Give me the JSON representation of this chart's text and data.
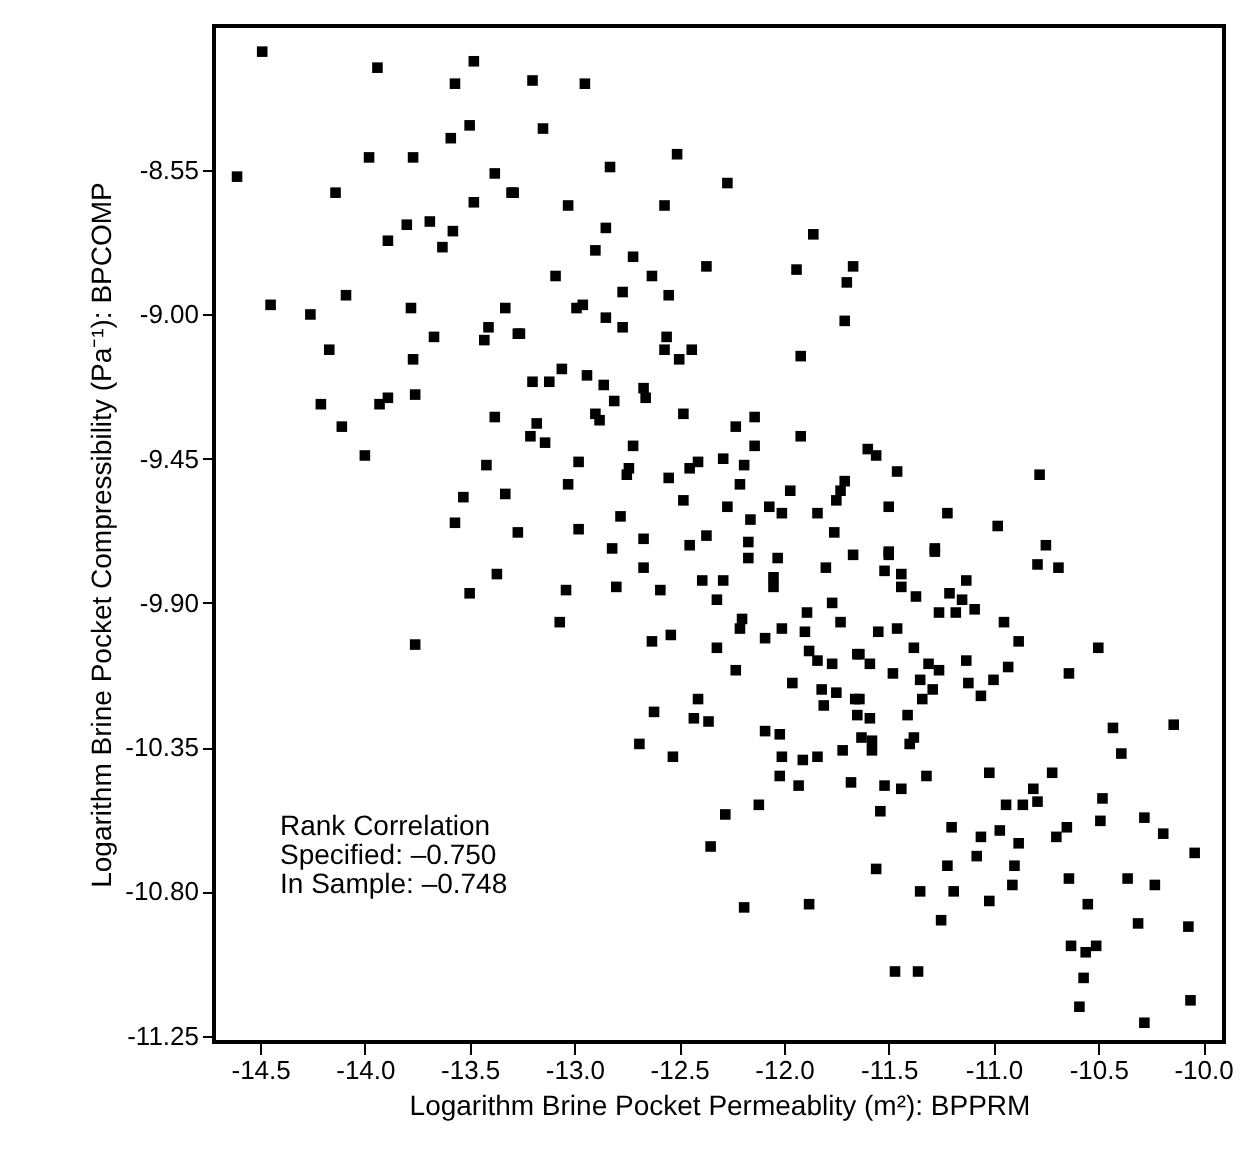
{
  "chart_data": {
    "type": "scatter",
    "xlabel": "Logarithm Brine Pocket Permeablity (m²): BPPRM",
    "ylabel": "Logarithm Brine Pocket Compressibility (Pa⁻¹): BPCOMP",
    "annotations": [
      "Rank Correlation",
      "Specified: –0.750",
      "In Sample: –0.748"
    ],
    "xlim": [
      -14.72,
      -9.9
    ],
    "ylim": [
      -11.27,
      -8.1
    ],
    "xticks": [
      {
        "value": -14.5,
        "label": "-14.5"
      },
      {
        "value": -14.0,
        "label": "-14.0"
      },
      {
        "value": -13.5,
        "label": "-13.5"
      },
      {
        "value": -13.0,
        "label": "-13.0"
      },
      {
        "value": -12.5,
        "label": "-12.5"
      },
      {
        "value": -12.0,
        "label": "-12.0"
      },
      {
        "value": -11.5,
        "label": "-11.5"
      },
      {
        "value": -11.0,
        "label": "-11.0"
      },
      {
        "value": -10.5,
        "label": "-10.5"
      },
      {
        "value": -10.0,
        "label": "-10.0"
      }
    ],
    "yticks": [
      {
        "value": -8.55,
        "label": "-8.55"
      },
      {
        "value": -9.0,
        "label": "-9.00"
      },
      {
        "value": -9.45,
        "label": "-9.45"
      },
      {
        "value": -9.9,
        "label": "-9.90"
      },
      {
        "value": -10.35,
        "label": "-10.35"
      },
      {
        "value": -10.8,
        "label": "-10.80"
      },
      {
        "value": -11.25,
        "label": "-11.25"
      }
    ],
    "grid": false,
    "marker": "square",
    "series": [
      {
        "color": "#000000",
        "x": [
          -14.49,
          -13.94,
          -13.48,
          -13.57,
          -13.5,
          -13.59,
          -13.98,
          -13.77,
          -14.61,
          -14.14,
          -13.38,
          -13.3,
          -13.48,
          -13.8,
          -13.69,
          -13.89,
          -13.58,
          -13.63,
          -14.45,
          -14.09,
          -14.26,
          -13.78,
          -13.33,
          -13.67,
          -13.41,
          -13.43,
          -13.27,
          -14.17,
          -13.77,
          -14.21,
          -13.93,
          -13.89,
          -13.76,
          -14.11,
          -13.38,
          -14.0,
          -13.42,
          -13.53,
          -13.33,
          -13.57,
          -13.27,
          -13.2,
          -12.95,
          -13.15,
          -12.83,
          -12.51,
          -12.27,
          -13.29,
          -13.03,
          -12.57,
          -12.85,
          -12.9,
          -12.72,
          -12.37,
          -11.86,
          -11.94,
          -11.67,
          -11.7,
          -13.09,
          -12.63,
          -12.77,
          -12.55,
          -12.99,
          -12.96,
          -12.85,
          -12.77,
          -11.71,
          -13.26,
          -12.56,
          -12.57,
          -12.5,
          -12.44,
          -11.92,
          -13.06,
          -13.2,
          -13.12,
          -12.94,
          -12.86,
          -12.81,
          -12.67,
          -12.66,
          -12.9,
          -12.88,
          -12.48,
          -12.14,
          -12.23,
          -13.18,
          -13.21,
          -13.14,
          -12.72,
          -12.14,
          -11.92,
          -12.98,
          -12.75,
          -12.74,
          -12.41,
          -12.45,
          -12.29,
          -12.19,
          -13.03,
          -12.55,
          -12.21,
          -12.48,
          -12.27,
          -11.97,
          -12.07,
          -12.01,
          -11.73,
          -11.75,
          -11.71,
          -11.84,
          -11.76,
          -12.78,
          -12.98,
          -12.16,
          -12.17,
          -12.67,
          -12.45,
          -12.37,
          -12.82,
          -11.6,
          -11.56,
          -11.46,
          -10.78,
          -11.5,
          -11.22,
          -10.98,
          -11.28,
          -10.75,
          -11.5,
          -13.76,
          -13.5,
          -13.37,
          -12.17,
          -12.03,
          -11.8,
          -11.67,
          -12.67,
          -13.04,
          -12.8,
          -12.59,
          -12.39,
          -12.29,
          -12.32,
          -12.05,
          -12.05,
          -13.07,
          -12.63,
          -12.54,
          -12.2,
          -12.21,
          -12.09,
          -12.01,
          -11.89,
          -11.9,
          -11.77,
          -11.73,
          -12.32,
          -12.23,
          -11.88,
          -11.84,
          -11.77,
          -11.65,
          -11.96,
          -11.82,
          -11.75,
          -11.81,
          -11.66,
          -12.41,
          -12.62,
          -12.43,
          -12.36,
          -12.09,
          -12.02,
          -12.69,
          -12.53,
          -11.72,
          -12.01,
          -11.91,
          -11.84,
          -12.02,
          -11.93,
          -11.68,
          -12.12,
          -12.28,
          -12.35,
          -12.19,
          -11.88,
          -11.5,
          -11.28,
          -10.79,
          -10.69,
          -11.52,
          -11.44,
          -11.44,
          -11.37,
          -11.13,
          -11.21,
          -11.15,
          -11.26,
          -11.18,
          -11.09,
          -10.95,
          -10.88,
          -10.5,
          -11.55,
          -11.46,
          -11.38,
          -11.64,
          -11.59,
          -11.48,
          -11.31,
          -11.26,
          -11.13,
          -10.93,
          -10.64,
          -11.35,
          -11.29,
          -11.34,
          -11.12,
          -11.06,
          -11.0,
          -11.64,
          -11.65,
          -11.59,
          -11.41,
          -11.63,
          -11.58,
          -11.58,
          -11.38,
          -11.4,
          -10.43,
          -10.14,
          -10.39,
          -11.52,
          -11.44,
          -11.32,
          -11.02,
          -10.72,
          -10.81,
          -10.94,
          -10.86,
          -10.79,
          -11.54,
          -10.48,
          -10.49,
          -10.28,
          -10.19,
          -10.04,
          -11.2,
          -11.06,
          -11.08,
          -10.97,
          -10.88,
          -10.7,
          -10.65,
          -11.56,
          -11.22,
          -10.9,
          -11.35,
          -11.19,
          -10.91,
          -11.02,
          -10.64,
          -10.36,
          -10.23,
          -11.25,
          -10.55,
          -10.31,
          -10.07,
          -10.63,
          -10.56,
          -10.51,
          -11.47,
          -11.36,
          -10.57,
          -10.59,
          -10.06,
          -10.28
        ],
        "values": [
          -8.18,
          -8.23,
          -8.21,
          -8.28,
          -8.41,
          -8.45,
          -8.51,
          -8.51,
          -8.57,
          -8.62,
          -8.56,
          -8.62,
          -8.65,
          -8.72,
          -8.71,
          -8.77,
          -8.74,
          -8.79,
          -8.97,
          -8.94,
          -9.0,
          -8.98,
          -8.98,
          -9.07,
          -9.04,
          -9.08,
          -9.06,
          -9.11,
          -9.14,
          -9.28,
          -9.28,
          -9.26,
          -9.25,
          -9.35,
          -9.32,
          -9.44,
          -9.47,
          -9.57,
          -9.56,
          -9.65,
          -9.68,
          -8.27,
          -8.28,
          -8.42,
          -8.54,
          -8.5,
          -8.59,
          -8.62,
          -8.66,
          -8.66,
          -8.73,
          -8.8,
          -8.82,
          -8.85,
          -8.75,
          -8.86,
          -8.85,
          -8.9,
          -8.88,
          -8.88,
          -8.93,
          -8.94,
          -8.98,
          -8.97,
          -9.01,
          -9.04,
          -9.02,
          -9.06,
          -9.07,
          -9.11,
          -9.14,
          -9.11,
          -9.13,
          -9.17,
          -9.21,
          -9.21,
          -9.19,
          -9.22,
          -9.27,
          -9.23,
          -9.26,
          -9.31,
          -9.33,
          -9.31,
          -9.32,
          -9.35,
          -9.34,
          -9.38,
          -9.4,
          -9.41,
          -9.41,
          -9.38,
          -9.46,
          -9.5,
          -9.48,
          -9.46,
          -9.48,
          -9.45,
          -9.47,
          -9.53,
          -9.51,
          -9.53,
          -9.58,
          -9.6,
          -9.55,
          -9.6,
          -9.62,
          -9.55,
          -9.58,
          -9.52,
          -9.62,
          -9.68,
          -9.63,
          -9.67,
          -9.64,
          -9.71,
          -9.7,
          -9.72,
          -9.69,
          -9.73,
          -9.42,
          -9.44,
          -9.49,
          -9.5,
          -9.6,
          -9.62,
          -9.66,
          -9.73,
          -9.72,
          -9.74,
          -10.03,
          -9.87,
          -9.81,
          -9.76,
          -9.76,
          -9.79,
          -9.75,
          -9.79,
          -9.86,
          -9.85,
          -9.86,
          -9.83,
          -9.83,
          -9.89,
          -9.82,
          -9.85,
          -9.96,
          -10.02,
          -10.0,
          -9.95,
          -9.98,
          -10.01,
          -9.98,
          -9.93,
          -9.99,
          -9.9,
          -9.96,
          -10.04,
          -10.11,
          -10.05,
          -10.08,
          -10.09,
          -10.06,
          -10.15,
          -10.17,
          -10.18,
          -10.22,
          -10.2,
          -10.2,
          -10.24,
          -10.26,
          -10.27,
          -10.3,
          -10.31,
          -10.34,
          -10.38,
          -10.36,
          -10.38,
          -10.39,
          -10.38,
          -10.44,
          -10.47,
          -10.46,
          -10.53,
          -10.56,
          -10.66,
          -10.85,
          -10.84,
          -9.75,
          -9.74,
          -9.78,
          -9.79,
          -9.8,
          -9.81,
          -9.85,
          -9.88,
          -9.83,
          -9.87,
          -9.89,
          -9.93,
          -9.93,
          -9.92,
          -9.96,
          -10.02,
          -10.04,
          -9.99,
          -9.98,
          -10.04,
          -10.06,
          -10.09,
          -10.12,
          -10.09,
          -10.11,
          -10.08,
          -10.1,
          -10.12,
          -10.14,
          -10.17,
          -10.2,
          -10.15,
          -10.19,
          -10.14,
          -10.2,
          -10.25,
          -10.26,
          -10.25,
          -10.32,
          -10.33,
          -10.36,
          -10.32,
          -10.34,
          -10.29,
          -10.28,
          -10.37,
          -10.47,
          -10.48,
          -10.44,
          -10.43,
          -10.43,
          -10.48,
          -10.53,
          -10.53,
          -10.52,
          -10.55,
          -10.51,
          -10.58,
          -10.57,
          -10.62,
          -10.68,
          -10.6,
          -10.63,
          -10.69,
          -10.61,
          -10.65,
          -10.63,
          -10.6,
          -10.73,
          -10.72,
          -10.72,
          -10.8,
          -10.8,
          -10.78,
          -10.83,
          -10.76,
          -10.76,
          -10.78,
          -10.89,
          -10.84,
          -10.9,
          -10.91,
          -10.97,
          -10.99,
          -10.97,
          -11.05,
          -11.05,
          -11.07,
          -11.16,
          -11.14,
          -11.21
        ]
      }
    ]
  }
}
